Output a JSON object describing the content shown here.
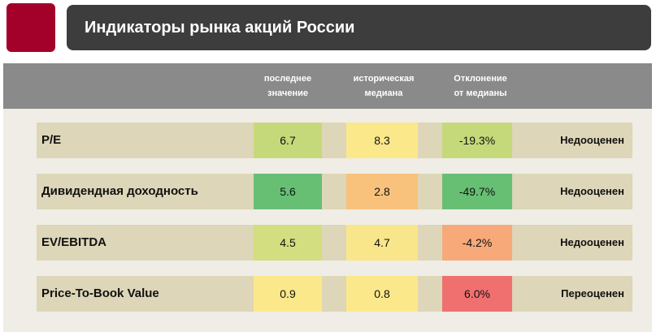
{
  "title": "Индикаторы рынка акций России",
  "colors": {
    "logo": "#a3002a",
    "header": "#3d3d3d",
    "column_band": "#8a8a8a",
    "row": "#ddd6b8",
    "panel": "#efede6"
  },
  "chart_data": {
    "type": "table",
    "title": "Индикаторы рынка акций России",
    "columns": [
      "последнее\nзначение",
      "историческая\nмедиана",
      "Отклонение\nот медианы"
    ],
    "rows": [
      {
        "label": "P/E",
        "last": "6.7",
        "median": "8.3",
        "deviation": "-19.3%",
        "verdict": "Недооценен",
        "colors": [
          "#c6d97a",
          "#fbe88a",
          "#c6d97a"
        ]
      },
      {
        "label": "Дивидендная доходность",
        "last": "5.6",
        "median": "2.8",
        "deviation": "-49.7%",
        "verdict": "Недооценен",
        "colors": [
          "#67bf73",
          "#f8c27c",
          "#67bf73"
        ]
      },
      {
        "label": "EV/EBITDA",
        "last": "4.5",
        "median": "4.7",
        "deviation": "-4.2%",
        "verdict": "Недооценен",
        "colors": [
          "#d3de80",
          "#f9e68a",
          "#f7a97a"
        ]
      },
      {
        "label": "Price-To-Book Value",
        "last": "0.9",
        "median": "0.8",
        "deviation": "6.0%",
        "verdict": "Переоценен",
        "colors": [
          "#fbe88a",
          "#fbe88a",
          "#f07070"
        ]
      }
    ]
  }
}
